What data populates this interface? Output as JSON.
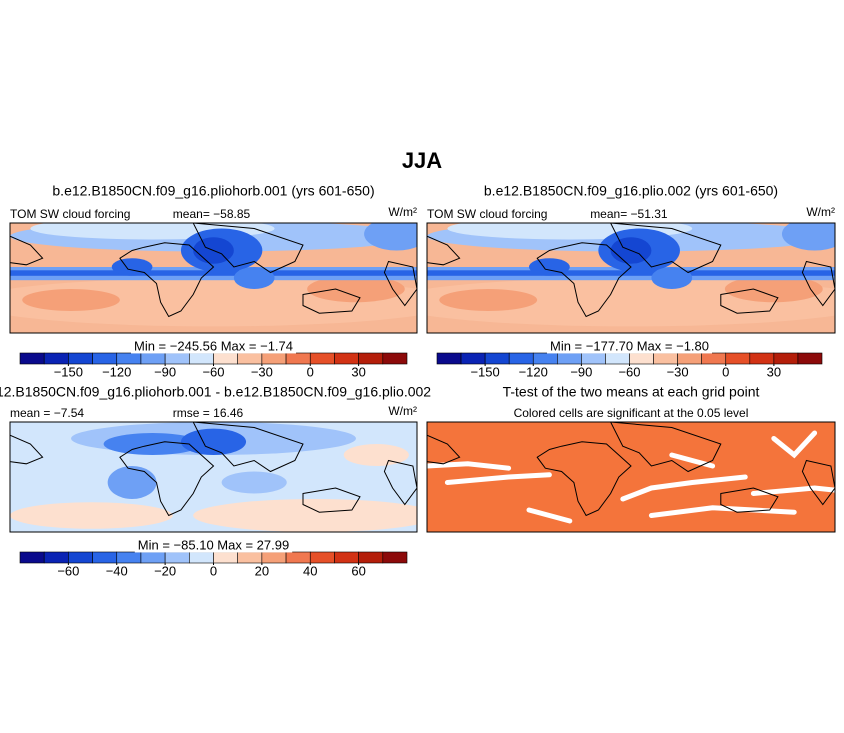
{
  "title": "JJA",
  "panels": [
    {
      "title": "b.e12.B1850CN.f09_g16.pliohorb.001 (yrs 601-650)",
      "left_label": "TOM SW cloud forcing",
      "mid_label": "mean= −58.85",
      "unit": "W/m²",
      "range_label": "Min = −245.56  Max =  −1.74",
      "colorbar": {
        "lim": [
          -180,
          60
        ],
        "colors": [
          "#0a0a8c",
          "#0a23b4",
          "#1446d2",
          "#2864e6",
          "#4682f0",
          "#6ea0f5",
          "#a0c3fa",
          "#d2e6fc",
          "#fde0cf",
          "#fac0a0",
          "#f5a078",
          "#f07850",
          "#e65028",
          "#d23214",
          "#b41e0a",
          "#8c0a0a"
        ],
        "ticks": [
          {
            "value": -150,
            "label": "−150"
          },
          {
            "value": -120,
            "label": "−120"
          },
          {
            "value": -90,
            "label": "−90"
          },
          {
            "value": -60,
            "label": "−60"
          },
          {
            "value": -30,
            "label": "−30"
          },
          0,
          30
        ]
      }
    },
    {
      "title": "b.e12.B1850CN.f09_g16.plio.002 (yrs 601-650)",
      "left_label": "TOM SW cloud forcing",
      "mid_label": "mean= −51.31",
      "unit": "W/m²",
      "range_label": "Min = −177.70  Max =  −1.80",
      "colorbar": {
        "lim": [
          -180,
          60
        ],
        "colors": [
          "#0a0a8c",
          "#0a23b4",
          "#1446d2",
          "#2864e6",
          "#4682f0",
          "#6ea0f5",
          "#a0c3fa",
          "#d2e6fc",
          "#fde0cf",
          "#fac0a0",
          "#f5a078",
          "#f07850",
          "#e65028",
          "#d23214",
          "#b41e0a",
          "#8c0a0a"
        ],
        "ticks": [
          {
            "value": -150,
            "label": "−150"
          },
          {
            "value": -120,
            "label": "−120"
          },
          {
            "value": -90,
            "label": "−90"
          },
          {
            "value": -60,
            "label": "−60"
          },
          {
            "value": -30,
            "label": "−30"
          },
          0,
          30
        ]
      }
    },
    {
      "title": "12.B1850CN.f09_g16.pliohorb.001 - b.e12.B1850CN.f09_g16.plio.002",
      "left_label": "mean =  −7.54",
      "mid_label": "rmse =  16.46",
      "unit": "W/m²",
      "range_label": "Min = −85.10  Max =  27.99",
      "colorbar": {
        "lim": [
          -80,
          80
        ],
        "colors": [
          "#0a0a8c",
          "#0a23b4",
          "#1446d2",
          "#2864e6",
          "#4682f0",
          "#6ea0f5",
          "#a0c3fa",
          "#d2e6fc",
          "#fde0cf",
          "#fac0a0",
          "#f5a078",
          "#f07850",
          "#e65028",
          "#d23214",
          "#b41e0a",
          "#8c0a0a"
        ],
        "ticks": [
          {
            "value": -60,
            "label": "−60"
          },
          {
            "value": -40,
            "label": "−40"
          },
          {
            "value": -20,
            "label": "−20"
          },
          0,
          20,
          40,
          60
        ]
      }
    },
    {
      "title": "T-test of the two means at each grid point",
      "subtitle": "Colored cells are significant at the 0.05 level"
    }
  ]
}
